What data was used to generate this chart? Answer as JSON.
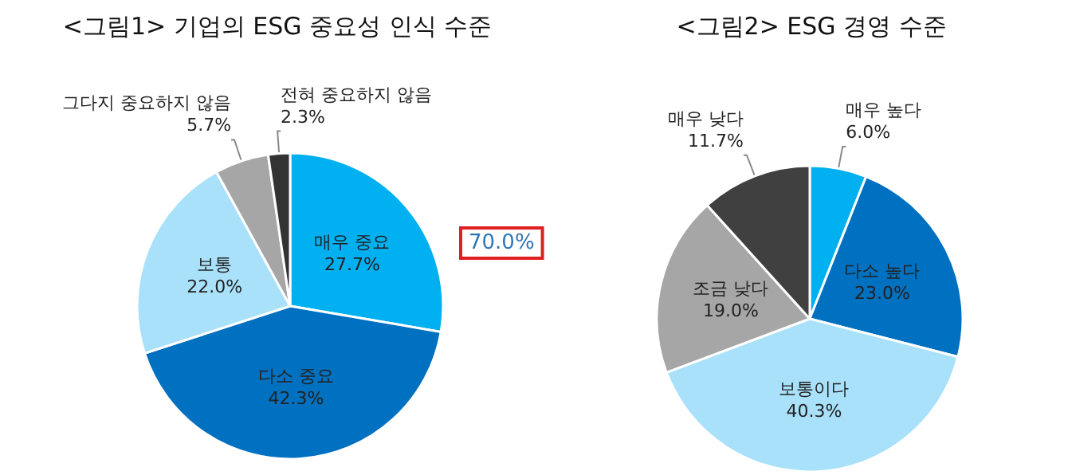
{
  "chart_data": [
    {
      "type": "pie",
      "title": "<그림1> 기업의 ESG 중요성 인식 수준",
      "categories": [
        "매우 중요",
        "다소 중요",
        "보통",
        "그다지 중요하지 않음",
        "전혀 중요하지 않음"
      ],
      "values": [
        27.7,
        42.3,
        22.0,
        5.7,
        2.3
      ],
      "value_labels": [
        "27.7%",
        "42.3%",
        "22.0%",
        "5.7%",
        "2.3%"
      ],
      "colors": [
        "#00b0f0",
        "#0070c0",
        "#a9e1fa",
        "#a6a6a6",
        "#333333"
      ],
      "annotations": [
        "70.0%"
      ],
      "legend": false
    },
    {
      "type": "pie",
      "title": "<그림2> ESG 경영 수준",
      "categories": [
        "매우 높다",
        "다소 높다",
        "보통이다",
        "조금 낮다",
        "매우 낮다"
      ],
      "values": [
        6.0,
        23.0,
        40.3,
        19.0,
        11.7
      ],
      "value_labels": [
        "6.0%",
        "23.0%",
        "40.3%",
        "19.0%",
        "11.7%"
      ],
      "colors": [
        "#00b0f0",
        "#0070c0",
        "#a9e1fa",
        "#a6a6a6",
        "#404040"
      ],
      "legend": false
    }
  ]
}
